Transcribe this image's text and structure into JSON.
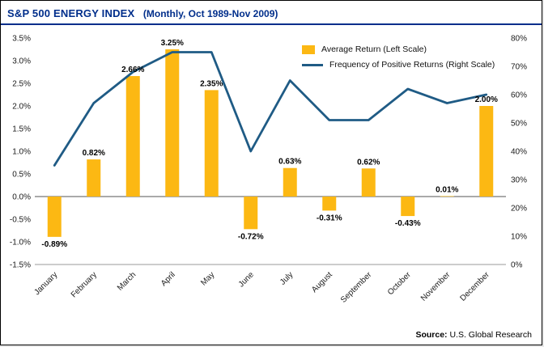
{
  "header": {
    "title": "S&P 500 ENERGY INDEX",
    "subtitle": "(Monthly, Oct 1989-Nov 2009)",
    "title_color": "#002E8B"
  },
  "legend": [
    {
      "label": "Average Return (Left Scale)",
      "type": "bar",
      "color": "#FCB813"
    },
    {
      "label": "Frequency of Positive Returns (Right Scale)",
      "type": "line",
      "color": "#1F5B85"
    }
  ],
  "source": {
    "label": "Source:",
    "text": " U.S. Global Research"
  },
  "chart_data": {
    "type": "bar+line",
    "title": "S&P 500 ENERGY INDEX (Monthly, Oct 1989-Nov 2009)",
    "categories": [
      "January",
      "February",
      "March",
      "April",
      "May",
      "June",
      "July",
      "August",
      "September",
      "October",
      "November",
      "December"
    ],
    "series": [
      {
        "name": "Average Return (Left Scale)",
        "type": "bar",
        "axis": "left",
        "color": "#FCB813",
        "values": [
          -0.89,
          0.82,
          2.66,
          3.25,
          2.35,
          -0.72,
          0.63,
          -0.31,
          0.62,
          -0.43,
          0.01,
          2.0
        ],
        "labels": [
          "-0.89%",
          "0.82%",
          "2.66%",
          "3.25%",
          "2.35%",
          "-0.72%",
          "0.63%",
          "-0.31%",
          "0.62%",
          "-0.43%",
          "0.01%",
          "2.00%"
        ]
      },
      {
        "name": "Frequency of Positive Returns (Right Scale)",
        "type": "line",
        "axis": "right",
        "color": "#1F5B85",
        "values": [
          35,
          57,
          68,
          75,
          75,
          40,
          65,
          51,
          51,
          62,
          57,
          60
        ]
      }
    ],
    "left_axis": {
      "min": -1.5,
      "max": 3.5,
      "step": 0.5,
      "tick_labels": [
        "3.5%",
        "3.0%",
        "2.5%",
        "2.0%",
        "1.5%",
        "1.0%",
        "0.5%",
        "0.0%",
        "-0.5%",
        "-1.0%",
        "-1.5%"
      ]
    },
    "right_axis": {
      "min": 0,
      "max": 80,
      "step": 10,
      "tick_labels": [
        "80%",
        "70%",
        "60%",
        "50%",
        "40%",
        "30%",
        "20%",
        "10%",
        "0%"
      ]
    },
    "grid": "off",
    "legend_position": "top-right"
  }
}
